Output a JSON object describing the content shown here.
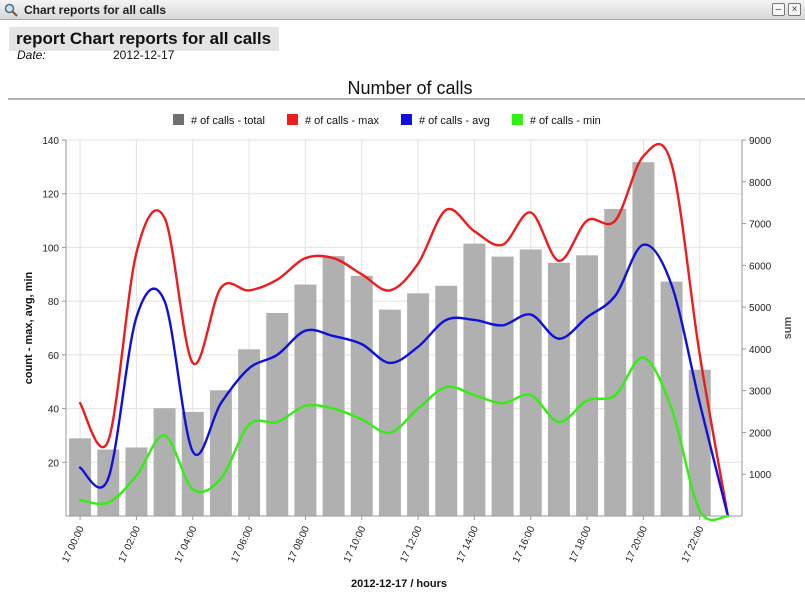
{
  "window": {
    "title": "Chart reports for all calls"
  },
  "report": {
    "title": "report Chart reports for all calls",
    "date_label": "Date:",
    "date_value": "2012-12-17"
  },
  "chart_data": {
    "type": "bar",
    "title": "Number of calls",
    "xlabel": "2012-12-17 / hours",
    "ylabel_left": "count - max, avg, min",
    "ylabel_right": "sum",
    "ylim_left": [
      0,
      140
    ],
    "ylim_right": [
      0,
      9000
    ],
    "yticks_left": [
      20,
      40,
      60,
      80,
      100,
      120,
      140
    ],
    "yticks_right": [
      1000,
      2000,
      3000,
      4000,
      5000,
      6000,
      7000,
      8000,
      9000
    ],
    "grid": true,
    "legend_position": "top",
    "categories": [
      "17 00:00",
      "17 01:00",
      "17 02:00",
      "17 03:00",
      "17 04:00",
      "17 05:00",
      "17 06:00",
      "17 07:00",
      "17 08:00",
      "17 09:00",
      "17 10:00",
      "17 11:00",
      "17 12:00",
      "17 13:00",
      "17 14:00",
      "17 15:00",
      "17 16:00",
      "17 17:00",
      "17 18:00",
      "17 19:00",
      "17 20:00",
      "17 21:00",
      "17 22:00",
      "17 23:00"
    ],
    "x_tick_labels": [
      "17 00:00",
      "17 02:00",
      "17 04:00",
      "17 06:00",
      "17 08:00",
      "17 10:00",
      "17 12:00",
      "17 14:00",
      "17 16:00",
      "17 18:00",
      "17 20:00",
      "17 22:00"
    ],
    "series": [
      {
        "name": "# of calls - total",
        "type": "bar",
        "axis": "right",
        "color": "#b0b0b0",
        "legend_color": "#707070",
        "values": [
          1860,
          1590,
          1640,
          2580,
          2490,
          3010,
          3990,
          4860,
          5540,
          6220,
          5750,
          4940,
          5330,
          5510,
          6520,
          6210,
          6380,
          6060,
          6240,
          7350,
          8470,
          5610,
          3500,
          0
        ]
      },
      {
        "name": "# of calls - max",
        "type": "line",
        "axis": "left",
        "color": "#ee1c1c",
        "values": [
          42,
          28,
          98,
          111,
          57,
          85,
          84,
          88,
          96,
          96,
          90,
          84,
          94,
          114,
          106,
          101,
          113,
          95,
          110,
          110,
          134,
          131,
          60,
          0
        ]
      },
      {
        "name": "# of calls - avg",
        "type": "line",
        "axis": "left",
        "color": "#1010dd",
        "values": [
          18,
          14,
          74,
          80,
          24,
          42,
          55,
          60,
          69,
          67,
          64,
          57,
          63,
          73,
          73,
          71,
          75,
          66,
          74,
          82,
          101,
          86,
          42,
          0
        ]
      },
      {
        "name": "# of calls - min",
        "type": "line",
        "axis": "left",
        "color": "#33ee11",
        "values": [
          6,
          5,
          15,
          30,
          10,
          14,
          34,
          35,
          41,
          40,
          36,
          31,
          40,
          48,
          45,
          42,
          45,
          35,
          43,
          45,
          59,
          40,
          2,
          0
        ]
      }
    ]
  }
}
